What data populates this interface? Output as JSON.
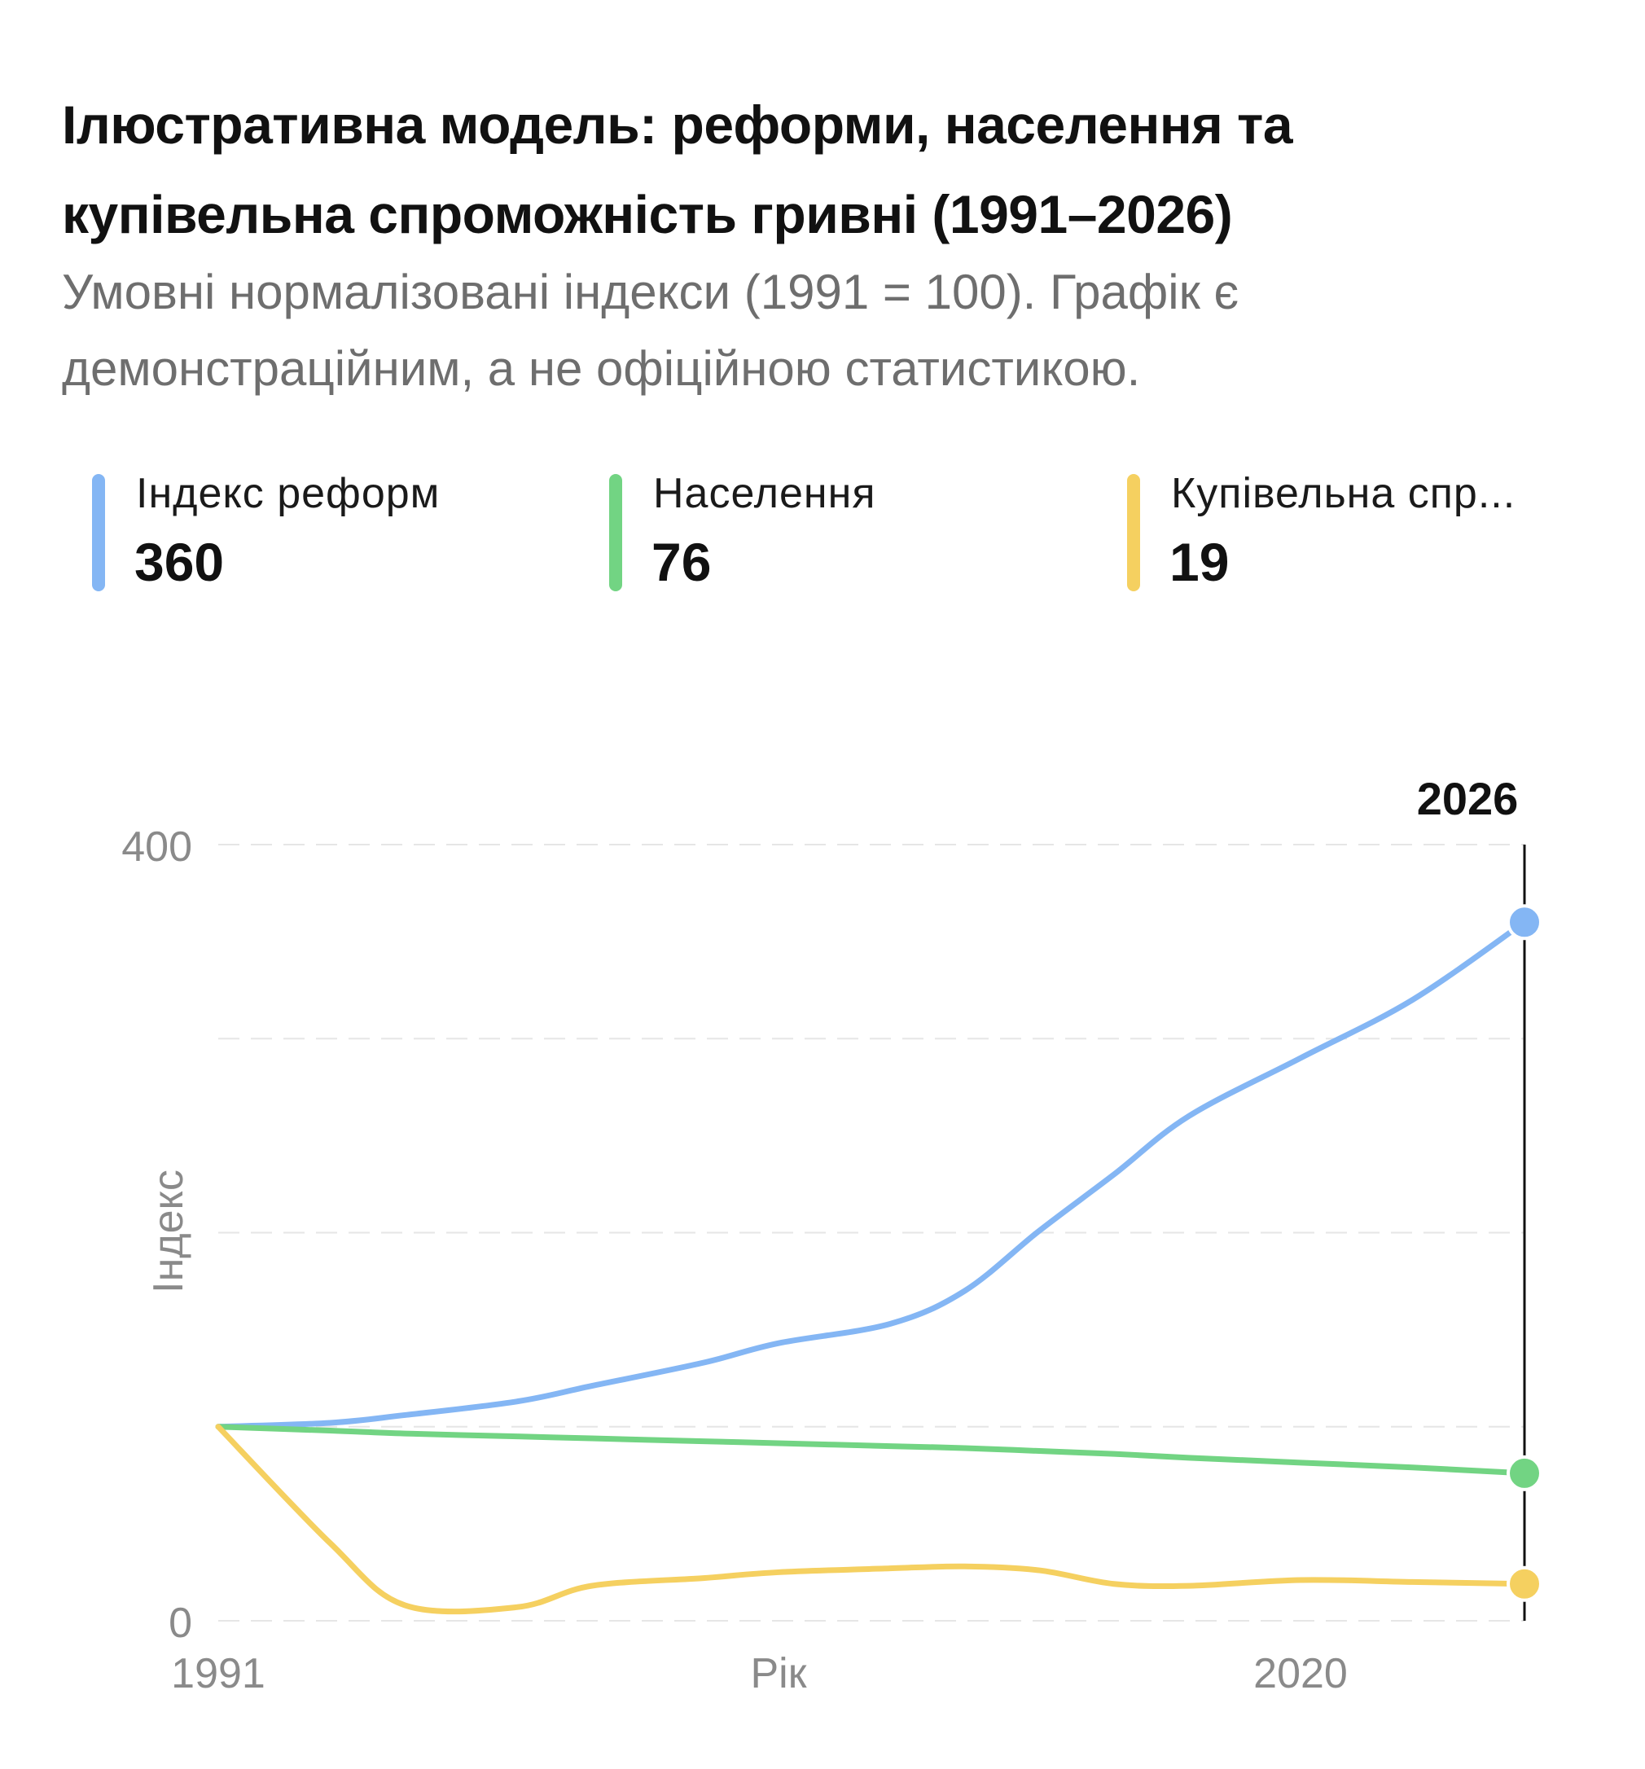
{
  "header": {
    "title_line1": "Ілюстративна модель: реформи, населення та",
    "title_line2": "купівельна спроможність гривні (1991–2026)",
    "subtitle_line1": "Умовні нормалізовані індекси (1991 = 100). Графік є",
    "subtitle_line2": "демонстраційним, а не офіційною статистикою."
  },
  "legend": [
    {
      "label": "Індекс реформ",
      "value": "360",
      "color": "#84b6f4"
    },
    {
      "label": "Населення",
      "value": "76",
      "color": "#72d483"
    },
    {
      "label": "Купівельна спр...",
      "value": "19",
      "color": "#f5d060"
    }
  ],
  "chart_data": {
    "type": "line",
    "title": "Ілюстративна модель: реформи, населення та купівельна спроможність гривні (1991–2026)",
    "subtitle": "Умовні нормалізовані індекси (1991 = 100). Графік є демонстраційним, а не офіційною статистикою.",
    "xlabel": "Рік",
    "ylabel": "Індекс",
    "x_ticks": [
      "1991",
      "2020"
    ],
    "y_ticks": [
      "0",
      "400"
    ],
    "xlim": [
      1991,
      2026
    ],
    "ylim": [
      0,
      400
    ],
    "grid": true,
    "highlight": {
      "x": 2026,
      "label": "2026"
    },
    "x": [
      1991,
      1994,
      1996,
      1999,
      2001,
      2004,
      2006,
      2009,
      2011,
      2013,
      2015,
      2017,
      2020,
      2023,
      2026
    ],
    "series": [
      {
        "name": "Індекс реформ",
        "color": "#84b6f4",
        "values": [
          100,
          102,
          106,
          113,
          121,
          133,
          143,
          153,
          170,
          201,
          230,
          260,
          290,
          320,
          360
        ]
      },
      {
        "name": "Населення",
        "color": "#72d483",
        "values": [
          100,
          98,
          96.5,
          95,
          94,
          92.5,
          91.5,
          90,
          89,
          87.5,
          86,
          84,
          81.5,
          79,
          76
        ]
      },
      {
        "name": "Купівельна спроможність",
        "color": "#f5d060",
        "values": [
          100,
          40,
          8,
          7,
          18,
          22,
          25,
          27,
          28,
          26,
          19,
          18,
          21,
          20,
          19
        ]
      }
    ]
  }
}
